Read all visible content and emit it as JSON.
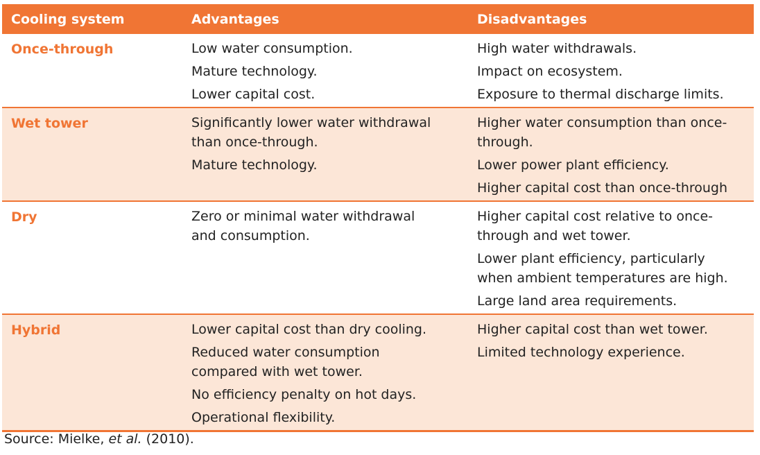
{
  "header": {
    "col1": "Cooling system",
    "col2": "Advantages",
    "col3": "Disadvantages"
  },
  "rows": [
    {
      "system": "Once-through",
      "advantages": [
        "Low water consumption.",
        "Mature technology.",
        "Lower capital cost."
      ],
      "disadvantages": [
        "High water withdrawals.",
        "Impact on ecosystem.",
        "Exposure to thermal discharge limits."
      ]
    },
    {
      "system": "Wet tower",
      "advantages": [
        "Significantly lower water withdrawal\nthan once-through.",
        "Mature technology."
      ],
      "disadvantages": [
        "Higher water consumption than once-\nthrough.",
        "Lower power plant efficiency.",
        "Higher capital cost than once-through"
      ]
    },
    {
      "system": "Dry",
      "advantages": [
        "Zero or minimal water withdrawal\nand consumption."
      ],
      "disadvantages": [
        "Higher capital cost relative to once-\nthrough and wet tower.",
        "Lower plant efficiency, particularly\nwhen ambient temperatures are high.",
        "Large land area requirements."
      ]
    },
    {
      "system": "Hybrid",
      "advantages": [
        "Lower capital cost than dry cooling.",
        "Reduced water consumption\ncompared with wet tower.",
        "No efficiency penalty on hot days.",
        "Operational flexibility."
      ],
      "disadvantages": [
        "Higher capital cost than wet tower.",
        "Limited technology experience."
      ]
    }
  ],
  "source": {
    "prefix": "Source: Mielke, ",
    "italic": "et al.",
    "suffix": " (2010)."
  },
  "colors": {
    "accent": "#f07534",
    "shade": "#fce6d7"
  }
}
